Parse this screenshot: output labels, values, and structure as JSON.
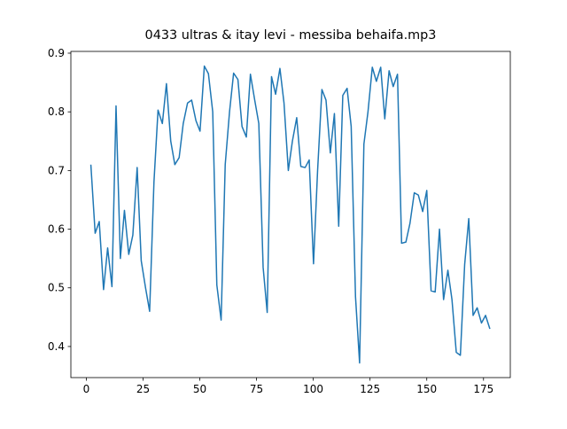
{
  "chart_data": {
    "type": "line",
    "title": "0433 ultras & itay levi - messiba behaifa.mp3",
    "x": [
      2.0,
      3.9,
      5.7,
      7.6,
      9.4,
      11.3,
      13.1,
      15.0,
      16.8,
      18.7,
      20.5,
      22.4,
      24.2,
      26.1,
      27.9,
      29.8,
      31.6,
      33.5,
      35.3,
      37.2,
      39.0,
      40.9,
      42.7,
      44.6,
      46.4,
      48.3,
      50.1,
      52.0,
      53.8,
      55.7,
      57.5,
      59.4,
      61.2,
      63.1,
      64.9,
      66.8,
      68.6,
      70.5,
      72.3,
      74.2,
      76.0,
      77.9,
      79.7,
      81.6,
      83.4,
      85.3,
      87.1,
      89.0,
      90.8,
      92.7,
      94.5,
      96.4,
      98.2,
      100.1,
      101.9,
      103.8,
      105.6,
      107.5,
      109.3,
      111.2,
      113.0,
      114.9,
      116.7,
      118.6,
      120.4,
      122.3,
      124.1,
      126.0,
      127.8,
      129.7,
      131.5,
      133.4,
      135.2,
      137.1,
      138.9,
      140.8,
      142.6,
      144.5,
      146.3,
      148.2,
      150.0,
      151.9,
      153.7,
      155.6,
      157.4,
      159.3,
      161.1,
      163.0,
      164.8,
      166.7,
      168.5,
      170.4,
      172.2,
      174.1,
      175.9,
      177.8
    ],
    "series": [
      {
        "color": "#1f77b4",
        "values": [
          0.71,
          0.593,
          0.613,
          0.497,
          0.568,
          0.502,
          0.81,
          0.55,
          0.632,
          0.557,
          0.59,
          0.705,
          0.546,
          0.5,
          0.46,
          0.68,
          0.803,
          0.78,
          0.848,
          0.75,
          0.71,
          0.722,
          0.78,
          0.815,
          0.82,
          0.785,
          0.767,
          0.878,
          0.865,
          0.8,
          0.505,
          0.445,
          0.71,
          0.8,
          0.866,
          0.855,
          0.775,
          0.757,
          0.864,
          0.82,
          0.78,
          0.535,
          0.458,
          0.86,
          0.83,
          0.874,
          0.815,
          0.7,
          0.75,
          0.79,
          0.707,
          0.705,
          0.718,
          0.541,
          0.7,
          0.838,
          0.82,
          0.73,
          0.797,
          0.605,
          0.828,
          0.84,
          0.775,
          0.485,
          0.372,
          0.745,
          0.8,
          0.876,
          0.852,
          0.876,
          0.788,
          0.87,
          0.843,
          0.864,
          0.576,
          0.578,
          0.61,
          0.662,
          0.658,
          0.63,
          0.666,
          0.495,
          0.493,
          0.6,
          0.48,
          0.53,
          0.48,
          0.39,
          0.385,
          0.54,
          0.618,
          0.453,
          0.466,
          0.44,
          0.453,
          0.43
        ]
      }
    ],
    "xlim": [
      -6.8,
      186.8
    ],
    "ylim": [
      0.347,
      0.903
    ],
    "xticks": [
      0,
      25,
      50,
      75,
      100,
      125,
      150,
      175
    ],
    "yticks": [
      0.4,
      0.5,
      0.6,
      0.7,
      0.8,
      0.9
    ]
  }
}
